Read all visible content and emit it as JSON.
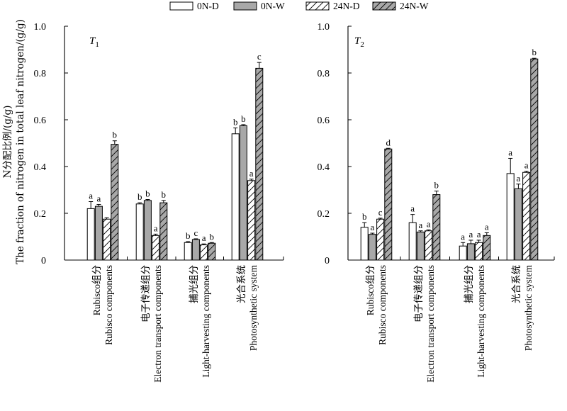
{
  "chart_data": {
    "type": "bar",
    "legend_position": "top-center",
    "colors": {
      "0N-D": "#ffffff",
      "0N-W": "#a8a8a8",
      "24N-D": "#ffffff",
      "24N-W": "#a8a8a8"
    },
    "hatched_series": [
      "24N-D",
      "24N-W"
    ],
    "series_names": [
      "0N-D",
      "0N-W",
      "24N-D",
      "24N-W"
    ],
    "ylabel_cn": "N分配比例/(g/g)",
    "ylabel_en": "The fraction of nitrogen in total leaf  nitrogen/(g/g)",
    "ylim": [
      0,
      1.0
    ],
    "yticks": [
      "0",
      "0.2",
      "0.4",
      "0.6",
      "0.8",
      "1.0"
    ],
    "categories": [
      {
        "cn": "Rubisco组分",
        "en": "Rubisco components"
      },
      {
        "cn": "电子传递组分",
        "en": "Electron transport components"
      },
      {
        "cn": "捕光组分",
        "en": "Light-harvesting components"
      },
      {
        "cn": "光合系统",
        "en": "Photosynthetic system"
      }
    ],
    "panels": [
      {
        "title_main": "T",
        "title_sub": "1",
        "series": [
          {
            "name": "0N-D",
            "values": [
              0.22,
              0.24,
              0.075,
              0.54
            ],
            "errors": [
              0.03,
              0.005,
              0.004,
              0.025
            ],
            "letters": [
              "a",
              "b",
              "b",
              "b"
            ]
          },
          {
            "name": "0N-W",
            "values": [
              0.23,
              0.255,
              0.088,
              0.575
            ],
            "errors": [
              0.008,
              0.004,
              0.003,
              0.004
            ],
            "letters": [
              "a",
              "b",
              "c",
              "b"
            ]
          },
          {
            "name": "24N-D",
            "values": [
              0.175,
              0.105,
              0.065,
              0.34
            ],
            "errors": [
              0.006,
              0.006,
              0.004,
              0.006
            ],
            "letters": [
              "",
              "a",
              "a",
              "a"
            ]
          },
          {
            "name": "24N-W",
            "values": [
              0.495,
              0.245,
              0.072,
              0.82
            ],
            "errors": [
              0.015,
              0.01,
              0.003,
              0.025
            ],
            "letters": [
              "b",
              "b",
              "b",
              "c"
            ]
          }
        ]
      },
      {
        "title_main": "T",
        "title_sub": "2",
        "series": [
          {
            "name": "0N-D",
            "values": [
              0.14,
              0.16,
              0.06,
              0.37
            ],
            "errors": [
              0.02,
              0.035,
              0.015,
              0.065
            ],
            "letters": [
              "b",
              "a",
              "a",
              "a"
            ]
          },
          {
            "name": "0N-W",
            "values": [
              0.11,
              0.12,
              0.07,
              0.305
            ],
            "errors": [
              0.005,
              0.005,
              0.015,
              0.02
            ],
            "letters": [
              "a",
              "a",
              "a",
              "a"
            ]
          },
          {
            "name": "24N-D",
            "values": [
              0.175,
              0.125,
              0.075,
              0.375
            ],
            "errors": [
              0.004,
              0.004,
              0.01,
              0.005
            ],
            "letters": [
              "c",
              "a",
              "a",
              "a"
            ]
          },
          {
            "name": "24N-W",
            "values": [
              0.475,
              0.28,
              0.105,
              0.86
            ],
            "errors": [
              0.003,
              0.015,
              0.012,
              0.003
            ],
            "letters": [
              "d",
              "b",
              "a",
              "b"
            ]
          }
        ]
      }
    ]
  }
}
